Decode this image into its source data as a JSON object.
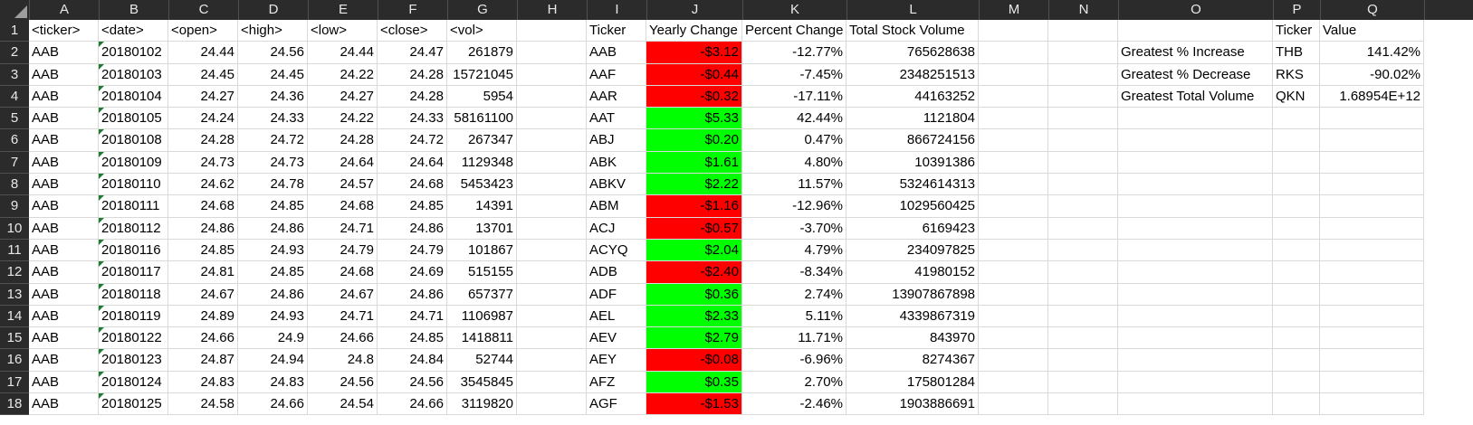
{
  "columns": [
    "A",
    "B",
    "C",
    "D",
    "E",
    "F",
    "G",
    "H",
    "I",
    "J",
    "K",
    "L",
    "M",
    "N",
    "O",
    "P",
    "Q"
  ],
  "colors": {
    "positive": "#00ff00",
    "negative": "#ff0000"
  },
  "rows": [
    {
      "num": "1",
      "cells": [
        "<ticker>",
        "<date>",
        "<open>",
        "<high>",
        "<low>",
        "<close>",
        "<vol>",
        "",
        "Ticker",
        "Yearly Change",
        "Percent Change",
        "Total Stock Volume",
        "",
        "",
        "",
        "Ticker",
        "Value"
      ]
    },
    {
      "num": "2",
      "cells": [
        "AAB",
        "20180102",
        "24.44",
        "24.56",
        "24.44",
        "24.47",
        "261879",
        "",
        "AAB",
        "-$3.12",
        "-12.77%",
        "765628638",
        "",
        "",
        "Greatest % Increase",
        "THB",
        "141.42%"
      ]
    },
    {
      "num": "3",
      "cells": [
        "AAB",
        "20180103",
        "24.45",
        "24.45",
        "24.22",
        "24.28",
        "15721045",
        "",
        "AAF",
        "-$0.44",
        "-7.45%",
        "2348251513",
        "",
        "",
        "Greatest % Decrease",
        "RKS",
        "-90.02%"
      ]
    },
    {
      "num": "4",
      "cells": [
        "AAB",
        "20180104",
        "24.27",
        "24.36",
        "24.27",
        "24.28",
        "5954",
        "",
        "AAR",
        "-$0.32",
        "-17.11%",
        "44163252",
        "",
        "",
        "Greatest Total Volume",
        "QKN",
        "1.68954E+12"
      ]
    },
    {
      "num": "5",
      "cells": [
        "AAB",
        "20180105",
        "24.24",
        "24.33",
        "24.22",
        "24.33",
        "58161100",
        "",
        "AAT",
        "$5.33",
        "42.44%",
        "1121804",
        "",
        "",
        "",
        "",
        ""
      ]
    },
    {
      "num": "6",
      "cells": [
        "AAB",
        "20180108",
        "24.28",
        "24.72",
        "24.28",
        "24.72",
        "267347",
        "",
        "ABJ",
        "$0.20",
        "0.47%",
        "866724156",
        "",
        "",
        "",
        "",
        ""
      ]
    },
    {
      "num": "7",
      "cells": [
        "AAB",
        "20180109",
        "24.73",
        "24.73",
        "24.64",
        "24.64",
        "1129348",
        "",
        "ABK",
        "$1.61",
        "4.80%",
        "10391386",
        "",
        "",
        "",
        "",
        ""
      ]
    },
    {
      "num": "8",
      "cells": [
        "AAB",
        "20180110",
        "24.62",
        "24.78",
        "24.57",
        "24.68",
        "5453423",
        "",
        "ABKV",
        "$2.22",
        "11.57%",
        "5324614313",
        "",
        "",
        "",
        "",
        ""
      ]
    },
    {
      "num": "9",
      "cells": [
        "AAB",
        "20180111",
        "24.68",
        "24.85",
        "24.68",
        "24.85",
        "14391",
        "",
        "ABM",
        "-$1.16",
        "-12.96%",
        "1029560425",
        "",
        "",
        "",
        "",
        ""
      ]
    },
    {
      "num": "10",
      "cells": [
        "AAB",
        "20180112",
        "24.86",
        "24.86",
        "24.71",
        "24.86",
        "13701",
        "",
        "ACJ",
        "-$0.57",
        "-3.70%",
        "6169423",
        "",
        "",
        "",
        "",
        ""
      ]
    },
    {
      "num": "11",
      "cells": [
        "AAB",
        "20180116",
        "24.85",
        "24.93",
        "24.79",
        "24.79",
        "101867",
        "",
        "ACYQ",
        "$2.04",
        "4.79%",
        "234097825",
        "",
        "",
        "",
        "",
        ""
      ]
    },
    {
      "num": "12",
      "cells": [
        "AAB",
        "20180117",
        "24.81",
        "24.85",
        "24.68",
        "24.69",
        "515155",
        "",
        "ADB",
        "-$2.40",
        "-8.34%",
        "41980152",
        "",
        "",
        "",
        "",
        ""
      ]
    },
    {
      "num": "13",
      "cells": [
        "AAB",
        "20180118",
        "24.67",
        "24.86",
        "24.67",
        "24.86",
        "657377",
        "",
        "ADF",
        "$0.36",
        "2.74%",
        "13907867898",
        "",
        "",
        "",
        "",
        ""
      ]
    },
    {
      "num": "14",
      "cells": [
        "AAB",
        "20180119",
        "24.89",
        "24.93",
        "24.71",
        "24.71",
        "1106987",
        "",
        "AEL",
        "$2.33",
        "5.11%",
        "4339867319",
        "",
        "",
        "",
        "",
        ""
      ]
    },
    {
      "num": "15",
      "cells": [
        "AAB",
        "20180122",
        "24.66",
        "24.9",
        "24.66",
        "24.85",
        "1418811",
        "",
        "AEV",
        "$2.79",
        "11.71%",
        "843970",
        "",
        "",
        "",
        "",
        ""
      ]
    },
    {
      "num": "16",
      "cells": [
        "AAB",
        "20180123",
        "24.87",
        "24.94",
        "24.8",
        "24.84",
        "52744",
        "",
        "AEY",
        "-$0.08",
        "-6.96%",
        "8274367",
        "",
        "",
        "",
        "",
        ""
      ]
    },
    {
      "num": "17",
      "cells": [
        "AAB",
        "20180124",
        "24.83",
        "24.83",
        "24.56",
        "24.56",
        "3545845",
        "",
        "AFZ",
        "$0.35",
        "2.70%",
        "175801284",
        "",
        "",
        "",
        "",
        ""
      ]
    },
    {
      "num": "18",
      "cells": [
        "AAB",
        "20180125",
        "24.58",
        "24.66",
        "24.54",
        "24.66",
        "3119820",
        "",
        "AGF",
        "-$1.53",
        "-2.46%",
        "1903886691",
        "",
        "",
        "",
        "",
        ""
      ]
    }
  ]
}
